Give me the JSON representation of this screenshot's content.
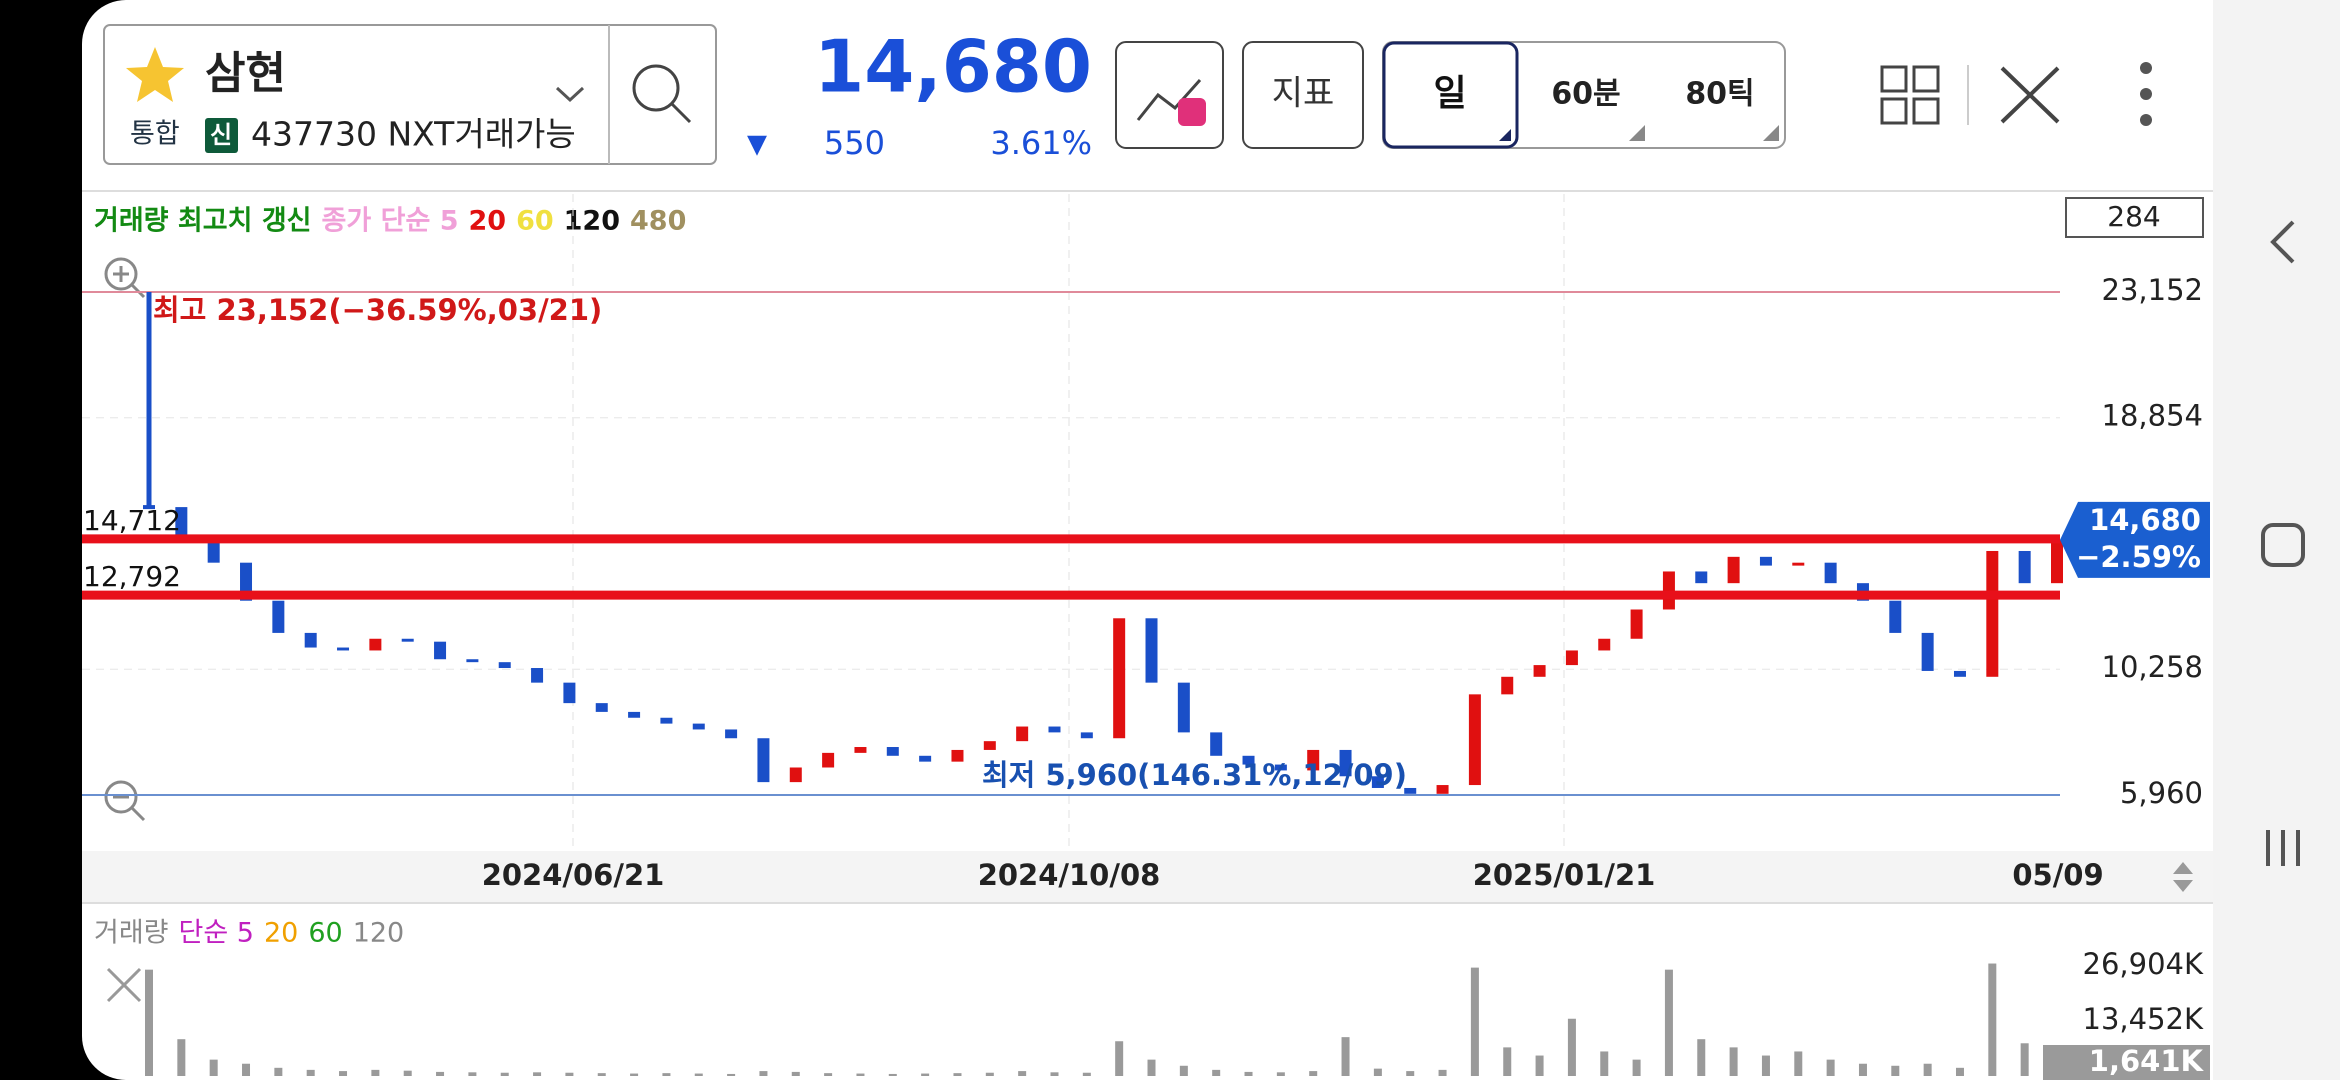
{
  "header": {
    "name": "삼현",
    "market": "통합",
    "badge": "신",
    "code": "437730 NXT거래가능",
    "price": "14,680",
    "change_arrow": "▼",
    "change": "550",
    "change_rate": "3.61%"
  },
  "toolbar": {
    "indicator": "지표",
    "period_day": "일",
    "period_60": "60분",
    "period_tick": "80틱"
  },
  "price_chart": {
    "type": "candlestick",
    "legend": [
      {
        "text": "거래량 최고치 갱신",
        "color": "#138a13"
      },
      {
        "text": "종가 단순 5",
        "color": "#f0a0d8"
      },
      {
        "text": "20",
        "color": "#e01010"
      },
      {
        "text": "60",
        "color": "#f0e040"
      },
      {
        "text": "120",
        "color": "#111111"
      },
      {
        "text": "480",
        "color": "#a09060"
      }
    ],
    "count": "284",
    "ylim": [
      4046,
      26501
    ],
    "yticks": [
      {
        "value": 23152,
        "label": "23,152"
      },
      {
        "value": 18854,
        "label": "18,854"
      },
      {
        "value": 10258,
        "label": "10,258"
      },
      {
        "value": 5960,
        "label": "5,960"
      }
    ],
    "dates": [
      "2024/06/21",
      "2024/10/08",
      "2025/01/21",
      "05/09"
    ],
    "closes": [
      15800,
      14700,
      13900,
      12600,
      11500,
      11000,
      10900,
      11300,
      11200,
      10600,
      10500,
      10300,
      9800,
      9100,
      8800,
      8600,
      8400,
      8200,
      7900,
      6400,
      6900,
      7400,
      7600,
      7300,
      7100,
      7500,
      7800,
      8300,
      8100,
      7900,
      12000,
      9800,
      8100,
      7300,
      7000,
      6800,
      7500,
      6600,
      6200,
      6000,
      6300,
      9400,
      10000,
      10400,
      10900,
      11300,
      12300,
      13600,
      13200,
      14100,
      13800,
      13900,
      13200,
      12600,
      11500,
      10200,
      10000,
      14300,
      13200,
      14680
    ],
    "up_color": "#e01010",
    "down_color": "#1a4fc8",
    "high": {
      "value": 23152,
      "label": "최고 23,152(−36.59%,03/21)"
    },
    "low": {
      "value": 5960,
      "label": "최저 5,960(146.31%,12/09)"
    },
    "levels": [
      {
        "value": 14712,
        "label": "14,712"
      },
      {
        "value": 12792,
        "label": "12,792"
      }
    ],
    "last": {
      "value": 14680,
      "label": "14,680",
      "change": "−2.59%"
    }
  },
  "volume_chart": {
    "type": "bar",
    "legend": [
      {
        "text": "거래량",
        "color": "#888888"
      },
      {
        "text": "단순 5",
        "color": "#c020c0"
      },
      {
        "text": "20",
        "color": "#f0a000"
      },
      {
        "text": "60",
        "color": "#20a020"
      },
      {
        "text": "120",
        "color": "#888888"
      }
    ],
    "ylim": [
      0,
      42300
    ],
    "yticks": [
      {
        "value": 26904,
        "label": "26,904K"
      },
      {
        "value": 13452,
        "label": "13,452K"
      }
    ],
    "last": {
      "value": 1641,
      "label": "1,641K"
    },
    "color": "#9a9a9a",
    "values": [
      26000,
      9000,
      4000,
      3000,
      2000,
      1500,
      1200,
      1500,
      1300,
      1000,
      900,
      800,
      900,
      800,
      700,
      600,
      700,
      600,
      500,
      1200,
      1000,
      700,
      600,
      500,
      600,
      700,
      800,
      1200,
      900,
      800,
      8500,
      4000,
      2500,
      1500,
      1000,
      900,
      1200,
      9500,
      1800,
      1200,
      1500,
      26500,
      7000,
      5000,
      14000,
      6000,
      4000,
      26000,
      9000,
      7000,
      5000,
      6000,
      4000,
      3000,
      2500,
      3000,
      2000,
      27500,
      8000,
      1641
    ]
  }
}
